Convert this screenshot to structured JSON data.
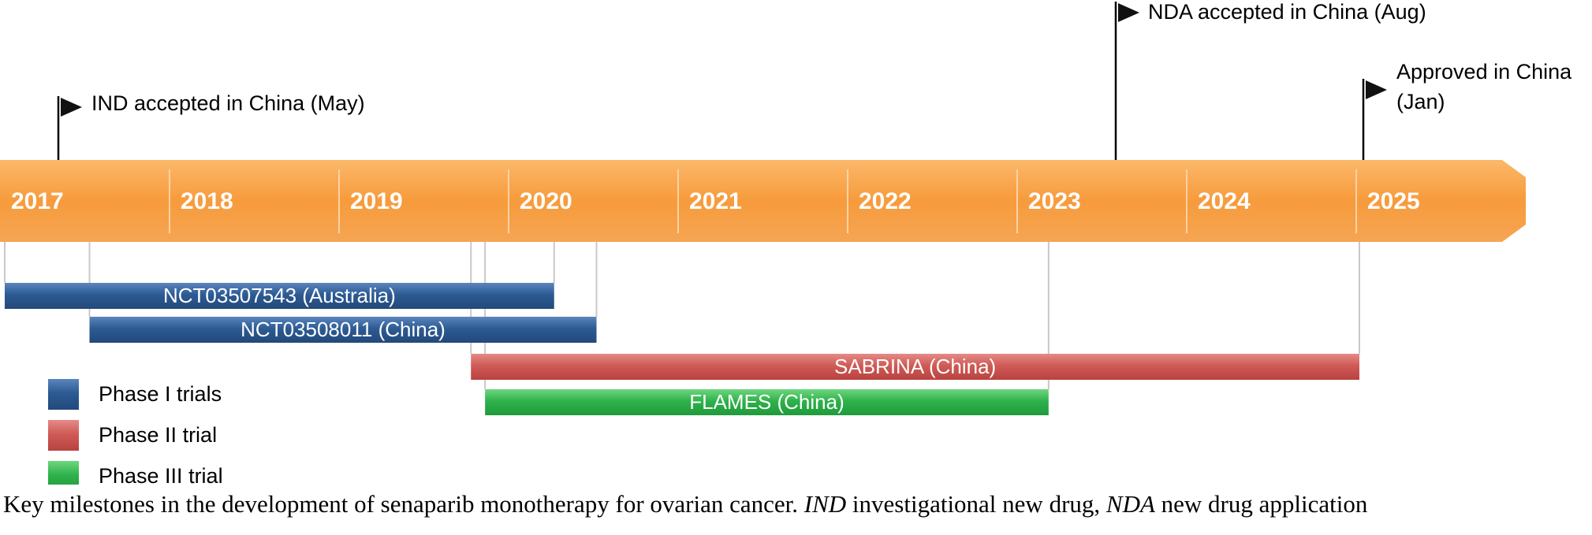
{
  "years": [
    "2017",
    "2018",
    "2019",
    "2020",
    "2021",
    "2022",
    "2023",
    "2024",
    "2025"
  ],
  "milestones": [
    {
      "label": "IND accepted in China (May)",
      "date": "2017-05"
    },
    {
      "label": "NDA accepted in China (Aug)",
      "date": "2023-08"
    },
    {
      "label_lines": [
        "Approved in China",
        "(Jan)"
      ],
      "date": "2025-01"
    }
  ],
  "trials": [
    {
      "label": "NCT03507543 (Australia)",
      "phase": "Phase I trials",
      "start": "2017-01",
      "end": "2020-04"
    },
    {
      "label": "NCT03508011 (China)",
      "phase": "Phase I trials",
      "start": "2017-07",
      "end": "2020-07"
    },
    {
      "label": "SABRINA (China)",
      "phase": "Phase II trial",
      "start": "2019-10",
      "end": "2025-01"
    },
    {
      "label": "FLAMES (China)",
      "phase": "Phase III trial",
      "start": "2019-11",
      "end": "2023-03"
    }
  ],
  "legend": [
    {
      "label": "Phase I trials",
      "color": "#2e5a92"
    },
    {
      "label": "Phase II trial",
      "color": "#cc5555"
    },
    {
      "label": "Phase III trial",
      "color": "#2fb24c"
    }
  ],
  "caption": {
    "parts": [
      {
        "text": "Key milestones in the development of senaparib monotherapy for ovarian cancer. ",
        "italic": false
      },
      {
        "text": "IND",
        "italic": true
      },
      {
        "text": " investigational new drug, ",
        "italic": false
      },
      {
        "text": "NDA",
        "italic": true
      },
      {
        "text": " new drug application",
        "italic": false
      }
    ]
  },
  "colors": {
    "timeline": "#f7a14a",
    "phase_i": "#2e5a92",
    "phase_ii": "#cc5555",
    "phase_iii": "#2fb24c"
  }
}
